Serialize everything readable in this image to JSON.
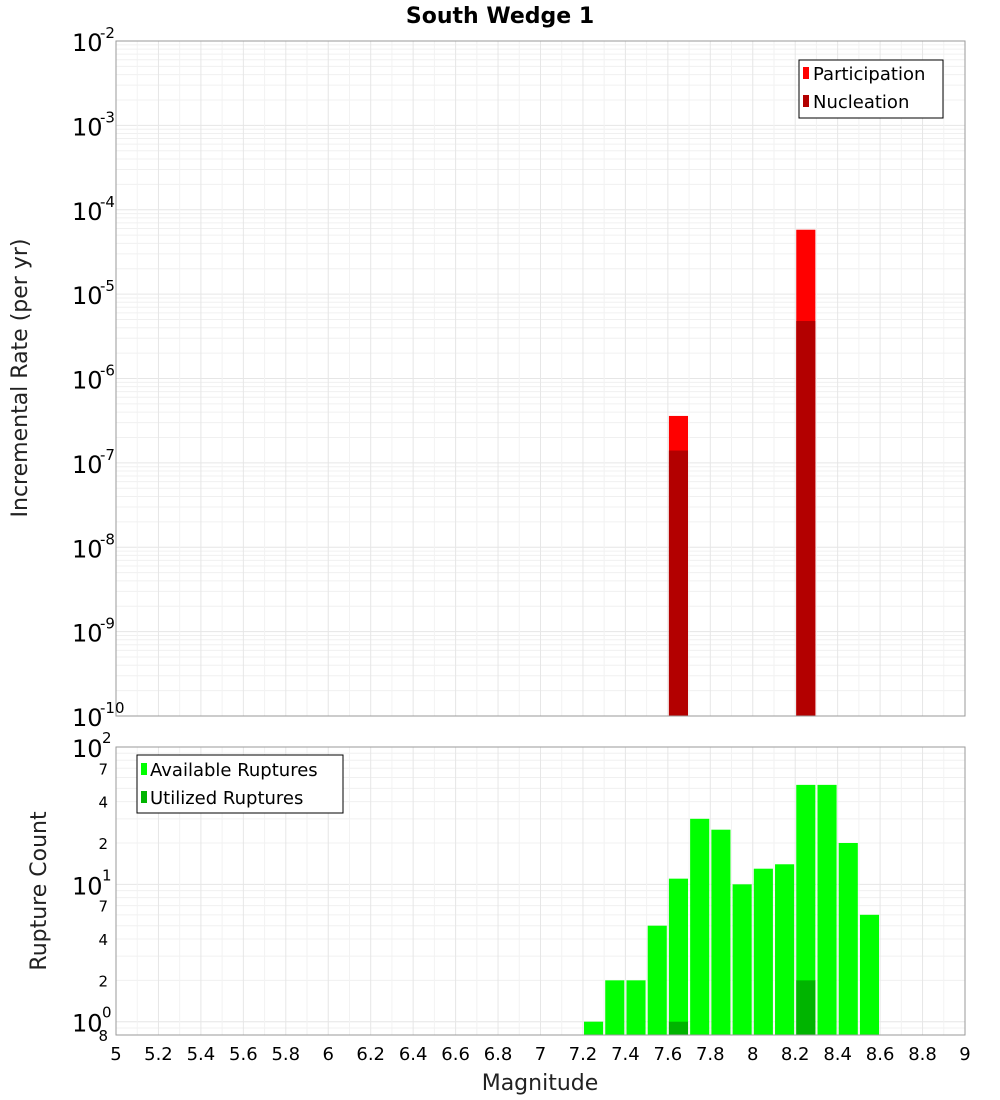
{
  "title": "South Wedge 1",
  "x_axis": {
    "label": "Magnitude",
    "range": [
      5,
      9
    ],
    "ticks": [
      "5",
      "5.2",
      "5.4",
      "5.6",
      "5.8",
      "6",
      "6.2",
      "6.4",
      "6.6",
      "6.8",
      "7",
      "7.2",
      "7.4",
      "7.6",
      "7.8",
      "8",
      "8.2",
      "8.4",
      "8.6",
      "8.8",
      "9"
    ]
  },
  "chart_data": [
    {
      "type": "bar",
      "title": "South Wedge 1",
      "xlabel": "Magnitude",
      "ylabel": "Incremental Rate (per yr)",
      "y_scale": "log",
      "xlim": [
        5,
        9
      ],
      "ylim": [
        1e-10,
        0.01
      ],
      "y_tick_labels": [
        {
          "base": "10",
          "exp": "-2"
        },
        {
          "base": "10",
          "exp": "-3"
        },
        {
          "base": "10",
          "exp": "-4"
        },
        {
          "base": "10",
          "exp": "-5"
        },
        {
          "base": "10",
          "exp": "-6"
        },
        {
          "base": "10",
          "exp": "-7"
        },
        {
          "base": "10",
          "exp": "-8"
        },
        {
          "base": "10",
          "exp": "-9"
        },
        {
          "base": "10",
          "exp": "-10"
        }
      ],
      "bar_width": 0.09,
      "series": [
        {
          "name": "Participation",
          "color": "#ff0000",
          "x": [
            7.65,
            8.25
          ],
          "values": [
            3.6e-07,
            5.8e-05
          ]
        },
        {
          "name": "Nucleation",
          "color": "#b30000",
          "x": [
            7.65,
            8.25
          ],
          "values": [
            1.4e-07,
            4.8e-06
          ]
        }
      ],
      "legend": {
        "position": "top-right",
        "entries": [
          "Participation",
          "Nucleation"
        ]
      },
      "grid": true
    },
    {
      "type": "bar",
      "ylabel": "Rupture Count",
      "xlabel": "Magnitude",
      "y_scale": "log",
      "xlim": [
        5,
        9
      ],
      "ylim": [
        0.8,
        100
      ],
      "y_major_ticks": [
        {
          "base": "10",
          "exp": "2"
        },
        {
          "base": "10",
          "exp": "1"
        },
        {
          "base": "10",
          "exp": "0"
        }
      ],
      "y_minor_ticks": [
        "7",
        "4",
        "2",
        "7",
        "4",
        "2",
        "8"
      ],
      "bar_width": 0.09,
      "series": [
        {
          "name": "Available Ruptures",
          "color": "#00ff00",
          "x": [
            7.25,
            7.35,
            7.45,
            7.55,
            7.65,
            7.75,
            7.85,
            7.95,
            8.05,
            8.15,
            8.25,
            8.35,
            8.45,
            8.55
          ],
          "values": [
            1,
            2,
            2,
            5,
            11,
            30,
            25,
            10,
            13,
            14,
            53,
            53,
            20,
            6
          ]
        },
        {
          "name": "Utilized Ruptures",
          "color": "#00b400",
          "x": [
            7.65,
            8.25
          ],
          "values": [
            1,
            2
          ]
        }
      ],
      "legend": {
        "position": "top-left",
        "entries": [
          "Available Ruptures",
          "Utilized Ruptures"
        ]
      },
      "grid": true
    }
  ]
}
